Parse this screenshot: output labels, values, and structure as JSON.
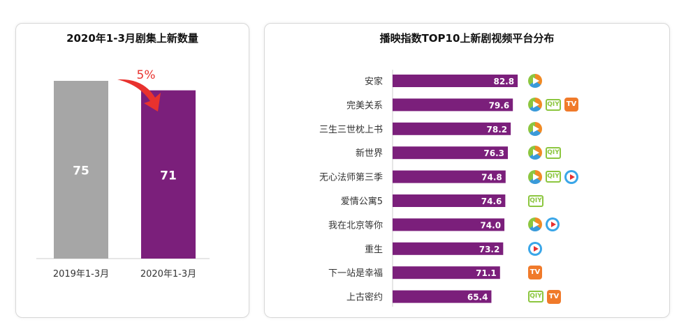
{
  "chart_data": [
    {
      "type": "bar",
      "title": "2020年1-3月剧集上新数量",
      "categories": [
        "2019年1-3月",
        "2020年1-3月"
      ],
      "values": [
        75,
        71
      ],
      "colors": [
        "#a6a6a6",
        "#7b1f7b"
      ],
      "annotation": "5%",
      "annotation_color": "#e8322e"
    },
    {
      "type": "bar",
      "orientation": "horizontal",
      "title": "播映指数TOP10上新剧视频平台分布",
      "categories": [
        "安家",
        "完美关系",
        "三生三世枕上书",
        "新世界",
        "无心法师第三季",
        "爱情公寓5",
        "我在北京等你",
        "重生",
        "下一站是幸福",
        "上古密约"
      ],
      "values": [
        82.8,
        79.6,
        78.2,
        76.3,
        74.8,
        74.6,
        74.0,
        73.2,
        71.1,
        65.4
      ],
      "value_labels": [
        "82.8",
        "79.6",
        "78.2",
        "76.3",
        "74.8",
        "74.6",
        "74.0",
        "73.2",
        "71.1",
        "65.4"
      ],
      "color": "#7b1f7b",
      "platforms": [
        [
          "tencent"
        ],
        [
          "tencent",
          "iqiyi",
          "mgtv"
        ],
        [
          "tencent"
        ],
        [
          "tencent",
          "iqiyi"
        ],
        [
          "tencent",
          "iqiyi",
          "youku"
        ],
        [
          "iqiyi"
        ],
        [
          "tencent",
          "youku"
        ],
        [
          "youku"
        ],
        [
          "mgtv"
        ],
        [
          "iqiyi",
          "mgtv"
        ]
      ]
    }
  ],
  "icon_text": {
    "iqiyi": "QIY",
    "mgtv": "TV"
  }
}
